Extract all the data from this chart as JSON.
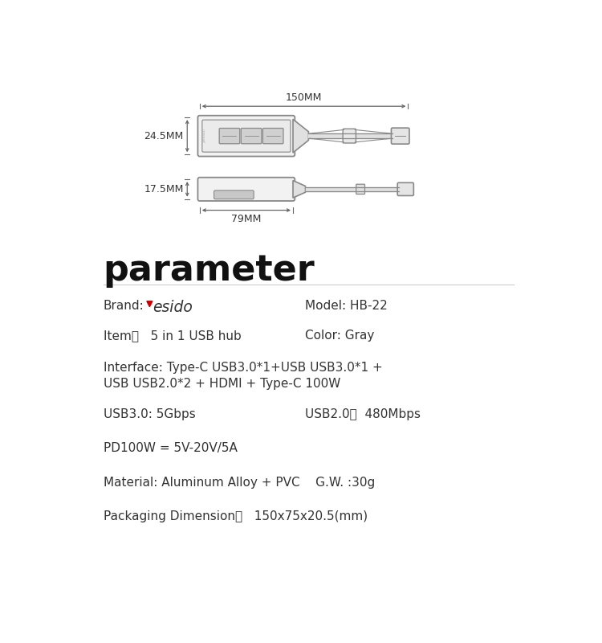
{
  "bg_color": "#ffffff",
  "dim_150mm_label": "150MM",
  "dim_245mm_label": "24.5MM",
  "dim_175mm_label": "17.5MM",
  "dim_79mm_label": "79MM",
  "param_title": "parameter",
  "brand_label": "Brand:",
  "model_label": "Model: HB-22",
  "item_label": "Item：   5 in 1 USB hub",
  "color_label": "Color: Gray",
  "interface_line1": "Interface: Type-C USB3.0*1+USB USB3.0*1 +",
  "interface_line2": "USB USB2.0*2 + HDMI + Type-C 100W",
  "usb30_label": "USB3.0: 5Gbps",
  "usb20_label": "USB2.0：  480Mbps",
  "pd_label": "PD100W = 5V-20V/5A",
  "material_label": "Material: Aluminum Alloy + PVC    G.W. :30g",
  "packaging_label": "Packaging Dimension：   150x75x20.5(mm)",
  "yesido_triangle_color": "#cc0000",
  "text_color": "#333333",
  "line_color": "#666666",
  "draw_color": "#888888",
  "fill_color": "#f2f2f2",
  "fill_dark": "#d8d8d8"
}
